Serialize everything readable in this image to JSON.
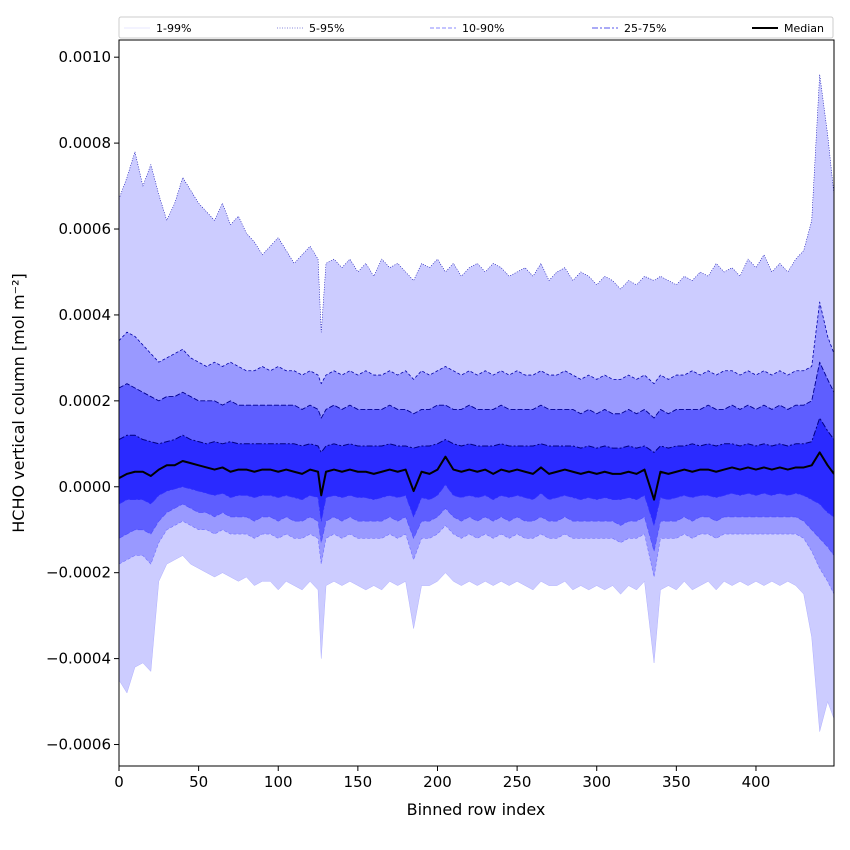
{
  "chart_data": {
    "type": "area",
    "title": "",
    "xlabel": "Binned row index",
    "ylabel": "HCHO vertical column [mol m⁻²]",
    "xlim": [
      0,
      449
    ],
    "ylim": [
      -0.00065,
      0.00104
    ],
    "xticks": [
      0,
      50,
      100,
      150,
      200,
      250,
      300,
      350,
      400
    ],
    "xtick_labels": [
      "0",
      "50",
      "100",
      "150",
      "200",
      "250",
      "300",
      "350",
      "400"
    ],
    "yticks": [
      -0.0006,
      -0.0004,
      -0.0002,
      0.0,
      0.0002,
      0.0004,
      0.0006,
      0.0008,
      0.001
    ],
    "ytick_labels": [
      "−0.0006",
      "−0.0004",
      "−0.0002",
      "0.0000",
      "0.0002",
      "0.0004",
      "0.0006",
      "0.0008",
      "0.0010"
    ],
    "grid": false,
    "legend": {
      "placement": "top, above plot, single row",
      "entries": [
        {
          "label": "1-99%",
          "color": "#d0d0ff",
          "dash": "solid",
          "width": 0.6
        },
        {
          "label": "5-95%",
          "color": "#6060d0",
          "dash": "dotted",
          "width": 0.8
        },
        {
          "label": "10-90%",
          "color": "#8888ff",
          "dash": "dashed",
          "width": 1.0
        },
        {
          "label": "25-75%",
          "color": "#5555ee",
          "dash": "dashdot",
          "width": 1.1
        },
        {
          "label": "Median",
          "color": "#000000",
          "dash": "solid",
          "width": 2.0
        }
      ]
    },
    "band_colors": {
      "p1_p99": "#ccccff",
      "p5_p95": "#9999ff",
      "p10_p90": "#5e5eff",
      "p25_p75": "#2a2aff"
    },
    "x": [
      0,
      5,
      10,
      15,
      20,
      25,
      30,
      35,
      40,
      45,
      50,
      55,
      60,
      65,
      70,
      75,
      80,
      85,
      90,
      95,
      100,
      105,
      110,
      115,
      120,
      125,
      127,
      130,
      135,
      140,
      145,
      150,
      155,
      160,
      165,
      170,
      175,
      180,
      185,
      190,
      195,
      200,
      205,
      210,
      215,
      220,
      225,
      230,
      235,
      240,
      245,
      250,
      255,
      260,
      265,
      270,
      275,
      280,
      285,
      290,
      295,
      300,
      305,
      310,
      315,
      320,
      325,
      330,
      336,
      340,
      345,
      350,
      355,
      360,
      365,
      370,
      375,
      380,
      385,
      390,
      395,
      400,
      405,
      410,
      415,
      420,
      425,
      430,
      435,
      440,
      445,
      449
    ],
    "series": [
      {
        "name": "p99",
        "values": [
          0.00067,
          0.00072,
          0.00078,
          0.0007,
          0.00075,
          0.00068,
          0.00062,
          0.00066,
          0.00072,
          0.00069,
          0.00066,
          0.00064,
          0.00062,
          0.00066,
          0.00061,
          0.00063,
          0.00059,
          0.00057,
          0.00054,
          0.00056,
          0.00058,
          0.00055,
          0.00052,
          0.00054,
          0.00056,
          0.00053,
          0.00036,
          0.00052,
          0.00053,
          0.00051,
          0.00053,
          0.0005,
          0.00052,
          0.00049,
          0.00053,
          0.00051,
          0.00052,
          0.0005,
          0.00048,
          0.00052,
          0.00051,
          0.00053,
          0.0005,
          0.00052,
          0.00049,
          0.00051,
          0.00052,
          0.0005,
          0.00052,
          0.00051,
          0.00049,
          0.0005,
          0.00051,
          0.00049,
          0.00052,
          0.00048,
          0.0005,
          0.00051,
          0.00048,
          0.0005,
          0.00049,
          0.00047,
          0.00049,
          0.00048,
          0.00046,
          0.00048,
          0.00047,
          0.00049,
          0.00048,
          0.00049,
          0.00048,
          0.00047,
          0.00049,
          0.00048,
          0.0005,
          0.00049,
          0.00052,
          0.0005,
          0.00051,
          0.00049,
          0.00053,
          0.00051,
          0.00054,
          0.0005,
          0.00052,
          0.0005,
          0.00053,
          0.00055,
          0.00062,
          0.00096,
          0.00082,
          0.00068
        ]
      },
      {
        "name": "p95",
        "values": [
          0.00034,
          0.00036,
          0.00035,
          0.00033,
          0.00031,
          0.00029,
          0.0003,
          0.00031,
          0.00032,
          0.0003,
          0.00029,
          0.00028,
          0.00029,
          0.00028,
          0.00029,
          0.00028,
          0.00027,
          0.00027,
          0.00028,
          0.00027,
          0.00028,
          0.00027,
          0.00027,
          0.00026,
          0.00027,
          0.00026,
          0.00024,
          0.00026,
          0.00027,
          0.00026,
          0.00027,
          0.00026,
          0.00027,
          0.00026,
          0.00026,
          0.00027,
          0.00026,
          0.00027,
          0.00025,
          0.00027,
          0.00026,
          0.00027,
          0.00028,
          0.00027,
          0.00026,
          0.00027,
          0.00026,
          0.00027,
          0.00026,
          0.00027,
          0.00026,
          0.00027,
          0.00026,
          0.00026,
          0.00027,
          0.00026,
          0.00026,
          0.00027,
          0.00026,
          0.00025,
          0.00026,
          0.00025,
          0.00026,
          0.00025,
          0.00025,
          0.00026,
          0.00025,
          0.00026,
          0.00024,
          0.00026,
          0.00025,
          0.00026,
          0.00026,
          0.00027,
          0.00026,
          0.00027,
          0.00026,
          0.00027,
          0.00027,
          0.00026,
          0.00027,
          0.00026,
          0.00027,
          0.00026,
          0.00027,
          0.00026,
          0.00027,
          0.00027,
          0.00028,
          0.00043,
          0.00035,
          0.00031
        ]
      },
      {
        "name": "p90",
        "values": [
          0.00023,
          0.00024,
          0.00023,
          0.00022,
          0.00021,
          0.0002,
          0.00021,
          0.00021,
          0.00022,
          0.00021,
          0.0002,
          0.0002,
          0.0002,
          0.00019,
          0.0002,
          0.00019,
          0.00019,
          0.00019,
          0.00019,
          0.00019,
          0.00019,
          0.00019,
          0.00019,
          0.00018,
          0.00019,
          0.00018,
          0.00016,
          0.00018,
          0.00019,
          0.00018,
          0.00019,
          0.00018,
          0.00018,
          0.00018,
          0.00018,
          0.00019,
          0.00018,
          0.00018,
          0.00017,
          0.00018,
          0.00018,
          0.00019,
          0.00019,
          0.00018,
          0.00018,
          0.00019,
          0.00018,
          0.00018,
          0.00018,
          0.00019,
          0.00018,
          0.00018,
          0.00018,
          0.00018,
          0.00019,
          0.00018,
          0.00018,
          0.00018,
          0.00018,
          0.00017,
          0.00018,
          0.00017,
          0.00018,
          0.00017,
          0.00017,
          0.00018,
          0.00017,
          0.00018,
          0.00016,
          0.00018,
          0.00017,
          0.00018,
          0.00018,
          0.00018,
          0.00018,
          0.00019,
          0.00018,
          0.00018,
          0.00019,
          0.00018,
          0.00019,
          0.00018,
          0.00019,
          0.00018,
          0.00019,
          0.00018,
          0.00019,
          0.00019,
          0.0002,
          0.00029,
          0.00025,
          0.00022
        ]
      },
      {
        "name": "p75",
        "values": [
          0.00011,
          0.00012,
          0.00012,
          0.00011,
          0.000105,
          0.0001,
          0.000105,
          0.00011,
          0.00012,
          0.00011,
          0.000105,
          0.0001,
          0.000105,
          0.0001,
          0.000105,
          0.0001,
          0.0001,
          0.0001,
          0.0001,
          0.0001,
          0.0001,
          0.0001,
          0.0001,
          9.5e-05,
          0.0001,
          9.5e-05,
          8e-05,
          9.5e-05,
          0.0001,
          9.5e-05,
          0.0001,
          9.5e-05,
          9.5e-05,
          9.5e-05,
          9.5e-05,
          0.0001,
          9.5e-05,
          9.5e-05,
          9e-05,
          9.5e-05,
          9.5e-05,
          0.0001,
          0.00011,
          0.0001,
          9.5e-05,
          0.0001,
          9.5e-05,
          9.5e-05,
          9.5e-05,
          0.0001,
          9.5e-05,
          9.5e-05,
          9.5e-05,
          9.5e-05,
          0.0001,
          9.5e-05,
          9.5e-05,
          9.5e-05,
          9.5e-05,
          9e-05,
          9.5e-05,
          9e-05,
          9.5e-05,
          9e-05,
          9e-05,
          9.5e-05,
          9e-05,
          9.5e-05,
          8e-05,
          9.5e-05,
          9e-05,
          9.5e-05,
          9.5e-05,
          0.0001,
          9.5e-05,
          0.0001,
          9.5e-05,
          0.0001,
          0.0001,
          9.5e-05,
          0.0001,
          9.5e-05,
          0.0001,
          9.5e-05,
          0.0001,
          9.5e-05,
          0.0001,
          0.0001,
          0.000105,
          0.00016,
          0.00013,
          0.00011
        ]
      },
      {
        "name": "Median",
        "values": [
          2e-05,
          3e-05,
          3.5e-05,
          3.5e-05,
          2.5e-05,
          4e-05,
          5e-05,
          5e-05,
          6e-05,
          5.5e-05,
          5e-05,
          4.5e-05,
          4e-05,
          4.5e-05,
          3.5e-05,
          4e-05,
          4e-05,
          3.5e-05,
          4e-05,
          4e-05,
          3.5e-05,
          4e-05,
          3.5e-05,
          3e-05,
          4e-05,
          3.5e-05,
          -2e-05,
          3.5e-05,
          4e-05,
          3.5e-05,
          4e-05,
          3.5e-05,
          3.5e-05,
          3e-05,
          3.5e-05,
          4e-05,
          3.5e-05,
          4e-05,
          -1e-05,
          3.5e-05,
          3e-05,
          4e-05,
          7e-05,
          4e-05,
          3.5e-05,
          4e-05,
          3.5e-05,
          4e-05,
          3e-05,
          4e-05,
          3.5e-05,
          4e-05,
          3.5e-05,
          3e-05,
          4.5e-05,
          3e-05,
          3.5e-05,
          4e-05,
          3.5e-05,
          3e-05,
          3.5e-05,
          3e-05,
          3.5e-05,
          3e-05,
          3e-05,
          3.5e-05,
          3e-05,
          4e-05,
          -3e-05,
          3.5e-05,
          3e-05,
          3.5e-05,
          4e-05,
          3.5e-05,
          4e-05,
          4e-05,
          3.5e-05,
          4e-05,
          4.5e-05,
          4e-05,
          4.5e-05,
          4e-05,
          4.5e-05,
          4e-05,
          4.5e-05,
          4e-05,
          4.5e-05,
          4.5e-05,
          5e-05,
          8e-05,
          5e-05,
          3e-05
        ]
      },
      {
        "name": "p25",
        "values": [
          -4e-05,
          -3e-05,
          -3e-05,
          -3e-05,
          -4e-05,
          -2e-05,
          -1e-05,
          -5e-06,
          0.0,
          -5e-06,
          -1e-05,
          -1.5e-05,
          -2e-05,
          -1.5e-05,
          -2.5e-05,
          -2e-05,
          -2e-05,
          -2.5e-05,
          -2e-05,
          -2e-05,
          -2.5e-05,
          -2e-05,
          -2.5e-05,
          -3e-05,
          -2e-05,
          -2.5e-05,
          -8e-05,
          -2.5e-05,
          -2e-05,
          -2.5e-05,
          -2e-05,
          -2.5e-05,
          -2.5e-05,
          -3e-05,
          -2.5e-05,
          -2e-05,
          -2.5e-05,
          -2e-05,
          -7e-05,
          -2.5e-05,
          -3e-05,
          -2e-05,
          5e-06,
          -2e-05,
          -2.5e-05,
          -2e-05,
          -2.5e-05,
          -2e-05,
          -3e-05,
          -2e-05,
          -2.5e-05,
          -2e-05,
          -2.5e-05,
          -3e-05,
          -1.5e-05,
          -3e-05,
          -2.5e-05,
          -2e-05,
          -2.5e-05,
          -3e-05,
          -2.5e-05,
          -3e-05,
          -2.5e-05,
          -3e-05,
          -3e-05,
          -2.5e-05,
          -3e-05,
          -2e-05,
          -9e-05,
          -2.5e-05,
          -3e-05,
          -2.5e-05,
          -2e-05,
          -2.5e-05,
          -2e-05,
          -2e-05,
          -2.5e-05,
          -2e-05,
          -1.5e-05,
          -2e-05,
          -1.5e-05,
          -2e-05,
          -1.5e-05,
          -2e-05,
          -1.5e-05,
          -2e-05,
          -1.5e-05,
          -2e-05,
          -3e-05,
          -4e-05,
          -6e-05,
          -7e-05
        ]
      },
      {
        "name": "p10",
        "values": [
          -0.00012,
          -0.00011,
          -0.0001,
          -0.0001,
          -0.00011,
          -8e-05,
          -6e-05,
          -5e-05,
          -4e-05,
          -5e-05,
          -6e-05,
          -6e-05,
          -7e-05,
          -6e-05,
          -7e-05,
          -7e-05,
          -7e-05,
          -8e-05,
          -7e-05,
          -7e-05,
          -8e-05,
          -7e-05,
          -8e-05,
          -8e-05,
          -7e-05,
          -8e-05,
          -0.00013,
          -8e-05,
          -7e-05,
          -8e-05,
          -7e-05,
          -8e-05,
          -8e-05,
          -8e-05,
          -8e-05,
          -7e-05,
          -8e-05,
          -7e-05,
          -0.00012,
          -8e-05,
          -8e-05,
          -7e-05,
          -5e-05,
          -7e-05,
          -8e-05,
          -7e-05,
          -8e-05,
          -7e-05,
          -8e-05,
          -7e-05,
          -8e-05,
          -7e-05,
          -8e-05,
          -8e-05,
          -7e-05,
          -8e-05,
          -8e-05,
          -7e-05,
          -8e-05,
          -8e-05,
          -8e-05,
          -8e-05,
          -8e-05,
          -8e-05,
          -9e-05,
          -8e-05,
          -8e-05,
          -7e-05,
          -0.00015,
          -8e-05,
          -8e-05,
          -8e-05,
          -7e-05,
          -8e-05,
          -7e-05,
          -7e-05,
          -8e-05,
          -7e-05,
          -7e-05,
          -7e-05,
          -7e-05,
          -7e-05,
          -7e-05,
          -7e-05,
          -7e-05,
          -7e-05,
          -7e-05,
          -8e-05,
          -0.0001,
          -0.00012,
          -0.00014,
          -0.00016
        ]
      },
      {
        "name": "p5",
        "values": [
          -0.00018,
          -0.00017,
          -0.00016,
          -0.00016,
          -0.00018,
          -0.00013,
          -0.0001,
          -9e-05,
          -8e-05,
          -9e-05,
          -0.0001,
          -0.0001,
          -0.00011,
          -0.0001,
          -0.00011,
          -0.00011,
          -0.00011,
          -0.00012,
          -0.00011,
          -0.00011,
          -0.00012,
          -0.00011,
          -0.00012,
          -0.00012,
          -0.00011,
          -0.00012,
          -0.00018,
          -0.00012,
          -0.00011,
          -0.00012,
          -0.00011,
          -0.00012,
          -0.00012,
          -0.00012,
          -0.00012,
          -0.00011,
          -0.00012,
          -0.00011,
          -0.00017,
          -0.00012,
          -0.00012,
          -0.00011,
          -9e-05,
          -0.00011,
          -0.00012,
          -0.00011,
          -0.00012,
          -0.00011,
          -0.00012,
          -0.00011,
          -0.00012,
          -0.00011,
          -0.00012,
          -0.00012,
          -0.00011,
          -0.00012,
          -0.00012,
          -0.00011,
          -0.00012,
          -0.00012,
          -0.00012,
          -0.00012,
          -0.00012,
          -0.00012,
          -0.00013,
          -0.00012,
          -0.00012,
          -0.00011,
          -0.00021,
          -0.00012,
          -0.00012,
          -0.00012,
          -0.00011,
          -0.00012,
          -0.00011,
          -0.00011,
          -0.00012,
          -0.00011,
          -0.00011,
          -0.00011,
          -0.00011,
          -0.00011,
          -0.00011,
          -0.00011,
          -0.00011,
          -0.00011,
          -0.00011,
          -0.00012,
          -0.00015,
          -0.00019,
          -0.00022,
          -0.00025
        ]
      },
      {
        "name": "p1",
        "values": [
          -0.00045,
          -0.00048,
          -0.00042,
          -0.00041,
          -0.00043,
          -0.00022,
          -0.00018,
          -0.00017,
          -0.00016,
          -0.00018,
          -0.00019,
          -0.0002,
          -0.00021,
          -0.0002,
          -0.00021,
          -0.00022,
          -0.00021,
          -0.00023,
          -0.00022,
          -0.00022,
          -0.00024,
          -0.00022,
          -0.00023,
          -0.00024,
          -0.00022,
          -0.00024,
          -0.0004,
          -0.00023,
          -0.00022,
          -0.00023,
          -0.00022,
          -0.00023,
          -0.00024,
          -0.00023,
          -0.00024,
          -0.00022,
          -0.00023,
          -0.00022,
          -0.00033,
          -0.00023,
          -0.00023,
          -0.00022,
          -0.0002,
          -0.00022,
          -0.00023,
          -0.00022,
          -0.00023,
          -0.00022,
          -0.00023,
          -0.00022,
          -0.00023,
          -0.00022,
          -0.00023,
          -0.00024,
          -0.00022,
          -0.00023,
          -0.00023,
          -0.00022,
          -0.00024,
          -0.00023,
          -0.00024,
          -0.00023,
          -0.00024,
          -0.00023,
          -0.00025,
          -0.00023,
          -0.00024,
          -0.00022,
          -0.00041,
          -0.00024,
          -0.00023,
          -0.00024,
          -0.00022,
          -0.00024,
          -0.00023,
          -0.00022,
          -0.00024,
          -0.00022,
          -0.00023,
          -0.00022,
          -0.00023,
          -0.00022,
          -0.00023,
          -0.00022,
          -0.00023,
          -0.00022,
          -0.00023,
          -0.00025,
          -0.00035,
          -0.00057,
          -0.0005,
          -0.00054
        ]
      }
    ]
  }
}
